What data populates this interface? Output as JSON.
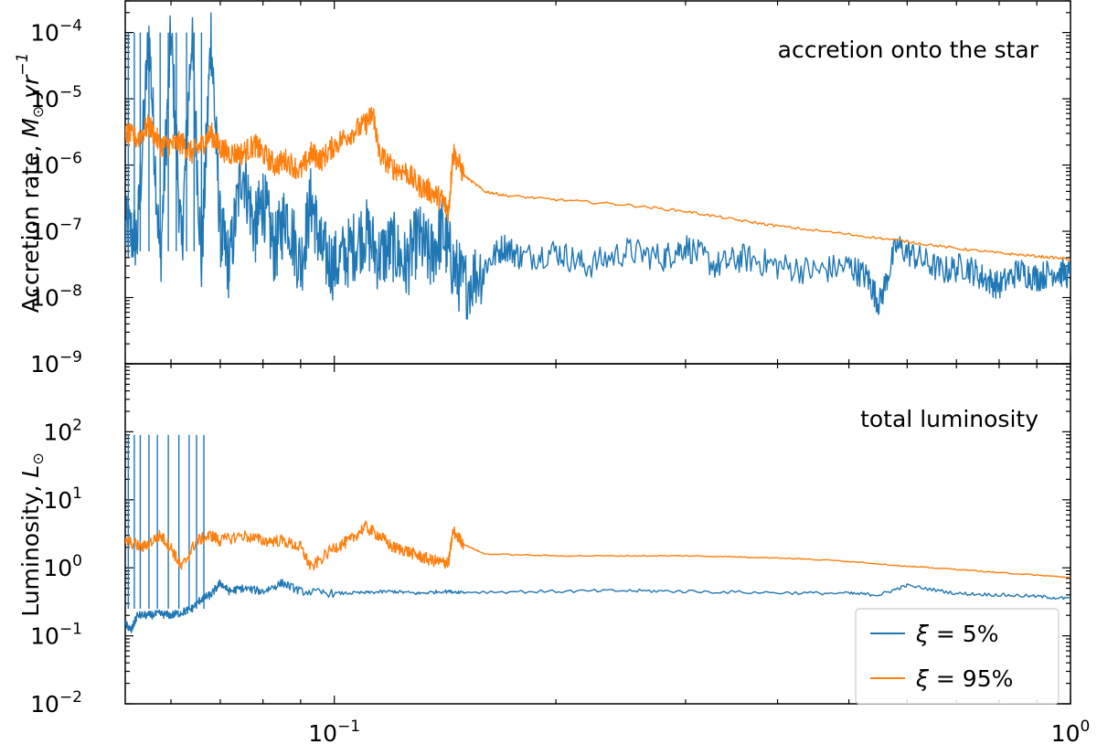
{
  "chart_data": [
    {
      "id": "top",
      "type": "line",
      "panel_label": "accretion onto the star",
      "ylabel": "Accretion rate, M⊙ yr⁻¹",
      "ylabel_base": "Accretion rate, ",
      "ylabel_M": "M",
      "ylabel_sun": "⊙",
      "ylabel_yr": "yr",
      "ylabel_exp": "−1",
      "xscale": "log",
      "yscale": "log",
      "xlim": [
        0.052,
        1.0
      ],
      "ylim": [
        1e-09,
        0.0003
      ],
      "ytick_labels": [
        {
          "value": 1e-09,
          "base": "10",
          "exp": "−9"
        },
        {
          "value": 1e-08,
          "base": "10",
          "exp": "−8"
        },
        {
          "value": 1e-07,
          "base": "10",
          "exp": "−7"
        },
        {
          "value": 1e-06,
          "base": "10",
          "exp": "−6"
        },
        {
          "value": 1e-05,
          "base": "10",
          "exp": "−5"
        },
        {
          "value": 0.0001,
          "base": "10",
          "exp": "−4"
        }
      ],
      "series": [
        {
          "name": "ξ = 5%",
          "color": "#1f77b4",
          "x": [
            0.052,
            0.054,
            0.056,
            0.058,
            0.06,
            0.062,
            0.064,
            0.066,
            0.068,
            0.07,
            0.072,
            0.075,
            0.078,
            0.08,
            0.083,
            0.086,
            0.09,
            0.093,
            0.096,
            0.1,
            0.105,
            0.11,
            0.115,
            0.12,
            0.125,
            0.13,
            0.135,
            0.14,
            0.145,
            0.15,
            0.16,
            0.17,
            0.18,
            0.2,
            0.22,
            0.25,
            0.28,
            0.3,
            0.33,
            0.36,
            0.4,
            0.45,
            0.5,
            0.53,
            0.55,
            0.58,
            0.62,
            0.67,
            0.72,
            0.76,
            0.8,
            0.85,
            0.9,
            0.95,
            1.0
          ],
          "y": [
            1e-07,
            8e-08,
            0.0001,
            3e-08,
            0.0001,
            5e-08,
            0.0001,
            3e-08,
            0.0001,
            1e-07,
            3e-08,
            1e-06,
            1e-07,
            3e-07,
            5e-08,
            2e-07,
            3e-08,
            3e-07,
            5e-08,
            3e-08,
            5e-08,
            1e-07,
            4e-08,
            6e-08,
            3e-08,
            8e-08,
            4e-08,
            1e-07,
            3e-08,
            1.5e-08,
            3e-08,
            6e-08,
            4e-08,
            5e-08,
            3e-08,
            5e-08,
            4e-08,
            6e-08,
            3e-08,
            4e-08,
            3e-08,
            2.5e-08,
            3e-08,
            2e-08,
            8e-09,
            6e-08,
            4e-08,
            2.5e-08,
            3e-08,
            2e-08,
            1.5e-08,
            2.5e-08,
            2e-08,
            2.5e-08,
            2.2e-08
          ]
        },
        {
          "name": "ξ = 95%",
          "color": "#ff7f0e",
          "x": [
            0.052,
            0.054,
            0.056,
            0.058,
            0.06,
            0.062,
            0.064,
            0.066,
            0.068,
            0.07,
            0.072,
            0.075,
            0.078,
            0.08,
            0.083,
            0.086,
            0.09,
            0.093,
            0.096,
            0.1,
            0.105,
            0.11,
            0.113,
            0.115,
            0.12,
            0.125,
            0.13,
            0.135,
            0.14,
            0.143,
            0.145,
            0.15,
            0.16,
            0.17,
            0.2,
            0.25,
            0.3,
            0.35,
            0.4,
            0.5,
            0.6,
            0.7,
            0.8,
            0.9,
            1.0
          ],
          "y": [
            3e-06,
            2.5e-06,
            4e-06,
            2e-06,
            2e-06,
            2.2e-06,
            1.5e-06,
            2e-06,
            3e-06,
            1.8e-06,
            1.5e-06,
            1.5e-06,
            2e-06,
            1.5e-06,
            1e-06,
            1.2e-06,
            8e-07,
            1.5e-06,
            1.2e-06,
            2e-06,
            3e-06,
            4e-06,
            6e-06,
            1.5e-06,
            9e-07,
            8e-07,
            5e-07,
            4e-07,
            3e-07,
            2e-07,
            1.6e-06,
            7e-07,
            4e-07,
            3.5e-07,
            3e-07,
            2.5e-07,
            2e-07,
            1.5e-07,
            1.2e-07,
            9e-08,
            7e-08,
            5.5e-08,
            4.7e-08,
            4.2e-08,
            3.8e-08
          ]
        }
      ]
    },
    {
      "id": "bottom",
      "type": "line",
      "panel_label": "total luminosity",
      "ylabel": "Luminosity, L⊙",
      "ylabel_base": "Luminosity, ",
      "ylabel_L": "L",
      "ylabel_sun": "⊙",
      "xscale": "log",
      "yscale": "log",
      "xlim": [
        0.052,
        1.0
      ],
      "ylim": [
        0.01,
        1000
      ],
      "ytick_labels": [
        {
          "value": 0.01,
          "base": "10",
          "exp": "−2"
        },
        {
          "value": 0.1,
          "base": "10",
          "exp": "−1"
        },
        {
          "value": 1,
          "base": "10",
          "exp": "0"
        },
        {
          "value": 10,
          "base": "10",
          "exp": "1"
        },
        {
          "value": 100,
          "base": "10",
          "exp": "2"
        }
      ],
      "xtick_labels": [
        {
          "value": 0.1,
          "base": "10",
          "exp": "−1"
        },
        {
          "value": 1,
          "base": "10",
          "exp": "0"
        }
      ],
      "series": [
        {
          "name": "ξ = 5%",
          "color": "#1f77b4",
          "x": [
            0.052,
            0.053,
            0.054,
            0.056,
            0.058,
            0.06,
            0.062,
            0.064,
            0.066,
            0.068,
            0.07,
            0.072,
            0.075,
            0.08,
            0.085,
            0.09,
            0.1,
            0.11,
            0.12,
            0.13,
            0.14,
            0.15,
            0.2,
            0.25,
            0.3,
            0.4,
            0.5,
            0.55,
            0.6,
            0.7,
            0.8,
            0.9,
            1.0
          ],
          "y": [
            0.15,
            0.12,
            0.2,
            0.2,
            0.21,
            0.2,
            0.22,
            0.25,
            0.35,
            0.4,
            0.6,
            0.45,
            0.5,
            0.45,
            0.6,
            0.45,
            0.42,
            0.43,
            0.45,
            0.42,
            0.45,
            0.44,
            0.45,
            0.46,
            0.45,
            0.43,
            0.42,
            0.4,
            0.55,
            0.42,
            0.4,
            0.38,
            0.35
          ]
        },
        {
          "name": "ξ = 95%",
          "color": "#ff7f0e",
          "x": [
            0.052,
            0.055,
            0.058,
            0.06,
            0.062,
            0.065,
            0.068,
            0.07,
            0.075,
            0.08,
            0.085,
            0.09,
            0.093,
            0.1,
            0.105,
            0.11,
            0.115,
            0.12,
            0.125,
            0.13,
            0.135,
            0.14,
            0.143,
            0.145,
            0.15,
            0.16,
            0.2,
            0.25,
            0.3,
            0.35,
            0.4,
            0.5,
            0.6,
            0.7,
            0.8,
            0.9,
            1.0
          ],
          "y": [
            2.5,
            2.0,
            3.0,
            2.0,
            1.0,
            2.5,
            3.0,
            2.5,
            3.0,
            2.5,
            2.5,
            2.0,
            1.0,
            2.0,
            2.5,
            4.0,
            3.0,
            2.0,
            1.8,
            1.5,
            1.3,
            1.2,
            1.2,
            3.5,
            2.2,
            1.6,
            1.5,
            1.5,
            1.5,
            1.45,
            1.4,
            1.25,
            1.05,
            0.95,
            0.85,
            0.78,
            0.72
          ]
        }
      ]
    }
  ],
  "legend": {
    "items": [
      {
        "label": "ξ = 5%",
        "greek": "ξ",
        "rest": " = 5%",
        "color": "#1f77b4"
      },
      {
        "label": "ξ = 95%",
        "greek": "ξ",
        "rest": " = 95%",
        "color": "#ff7f0e"
      }
    ]
  }
}
